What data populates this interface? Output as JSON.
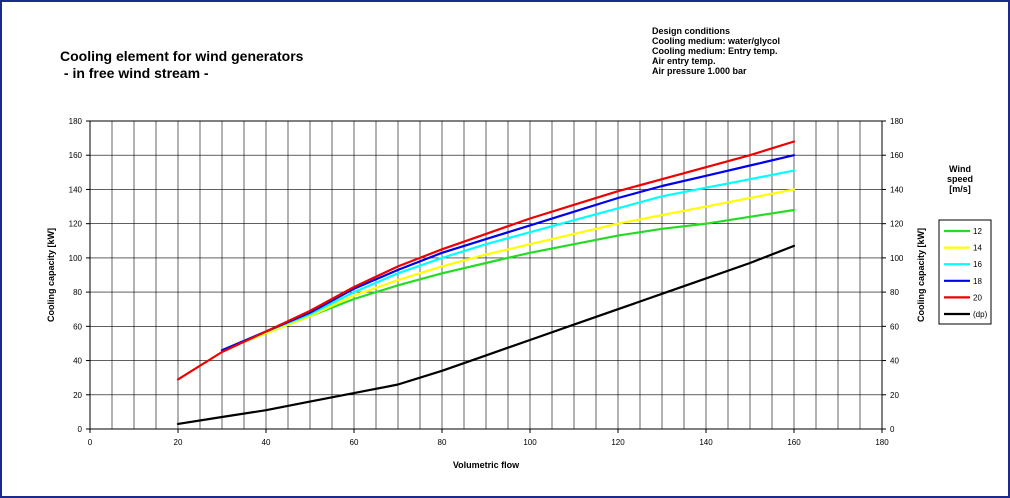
{
  "title_lines": [
    "Cooling element for wind generators",
    " - in free wind stream -"
  ],
  "conditions": [
    "Design conditions",
    "Cooling medium: water/glycol",
    "Cooling medium: Entry temp.",
    "Air entry temp.",
    "Air pressure 1.000 bar"
  ],
  "chart_data": {
    "type": "line",
    "xlabel": "Volumetric flow",
    "ylabel": "Cooling capacity [kW]",
    "ylabel_right": "Cooling capacity [kW]",
    "xlim": [
      0,
      180
    ],
    "ylim": [
      0,
      180
    ],
    "x_ticks": [
      0,
      20,
      40,
      60,
      80,
      100,
      120,
      140,
      160,
      180
    ],
    "y_ticks": [
      0,
      20,
      40,
      60,
      80,
      100,
      120,
      140,
      160,
      180
    ],
    "grid": true,
    "legend_title": [
      "Wind",
      "speed",
      "[m/s]"
    ],
    "legend_position": "right",
    "series": [
      {
        "name": "12",
        "color": "#22dd22",
        "points": [
          [
            30,
            46
          ],
          [
            40,
            56
          ],
          [
            50,
            66
          ],
          [
            60,
            76
          ],
          [
            70,
            84
          ],
          [
            80,
            91
          ],
          [
            90,
            97
          ],
          [
            100,
            103
          ],
          [
            110,
            108
          ],
          [
            120,
            113
          ],
          [
            130,
            117
          ],
          [
            140,
            120
          ],
          [
            150,
            124
          ],
          [
            160,
            128
          ]
        ]
      },
      {
        "name": "14",
        "color": "#ffff00",
        "points": [
          [
            30,
            46
          ],
          [
            40,
            56
          ],
          [
            50,
            66
          ],
          [
            60,
            78
          ],
          [
            70,
            87
          ],
          [
            80,
            95
          ],
          [
            90,
            102
          ],
          [
            100,
            108
          ],
          [
            110,
            114
          ],
          [
            120,
            120
          ],
          [
            130,
            125
          ],
          [
            140,
            130
          ],
          [
            150,
            135
          ],
          [
            160,
            140
          ]
        ]
      },
      {
        "name": "16",
        "color": "#00ffff",
        "points": [
          [
            30,
            46
          ],
          [
            40,
            57
          ],
          [
            50,
            67
          ],
          [
            60,
            80
          ],
          [
            70,
            91
          ],
          [
            80,
            100
          ],
          [
            90,
            108
          ],
          [
            100,
            115
          ],
          [
            110,
            122
          ],
          [
            120,
            129
          ],
          [
            130,
            136
          ],
          [
            140,
            141
          ],
          [
            150,
            146
          ],
          [
            160,
            151
          ]
        ]
      },
      {
        "name": "18",
        "color": "#0000ee",
        "points": [
          [
            30,
            46
          ],
          [
            40,
            57
          ],
          [
            50,
            68
          ],
          [
            60,
            82
          ],
          [
            70,
            93
          ],
          [
            80,
            103
          ],
          [
            90,
            111
          ],
          [
            100,
            119
          ],
          [
            110,
            127
          ],
          [
            120,
            135
          ],
          [
            130,
            142
          ],
          [
            140,
            148
          ],
          [
            150,
            154
          ],
          [
            160,
            160
          ]
        ]
      },
      {
        "name": "20",
        "color": "#ee0000",
        "points": [
          [
            20,
            29
          ],
          [
            30,
            45
          ],
          [
            40,
            57
          ],
          [
            50,
            69
          ],
          [
            60,
            83
          ],
          [
            70,
            95
          ],
          [
            80,
            105
          ],
          [
            90,
            114
          ],
          [
            100,
            123
          ],
          [
            110,
            131
          ],
          [
            120,
            139
          ],
          [
            130,
            146
          ],
          [
            140,
            153
          ],
          [
            150,
            160
          ],
          [
            160,
            168
          ]
        ]
      },
      {
        "name": "(dp)",
        "color": "#000000",
        "points": [
          [
            20,
            3
          ],
          [
            30,
            7
          ],
          [
            40,
            11
          ],
          [
            50,
            16
          ],
          [
            60,
            21
          ],
          [
            70,
            26
          ],
          [
            80,
            34
          ],
          [
            90,
            43
          ],
          [
            100,
            52
          ],
          [
            110,
            61
          ],
          [
            120,
            70
          ],
          [
            130,
            79
          ],
          [
            140,
            88
          ],
          [
            150,
            97
          ],
          [
            160,
            107
          ]
        ]
      }
    ]
  }
}
